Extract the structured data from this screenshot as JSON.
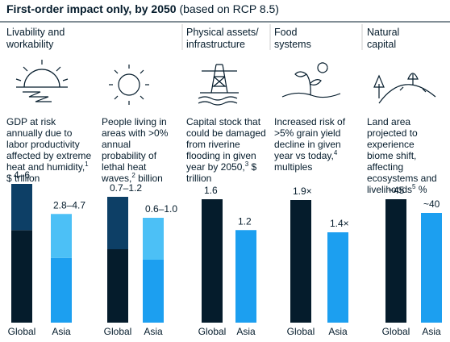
{
  "title": "First-order impact only, by 2050",
  "title_note": "(based on RCP 8.5)",
  "sections": [
    "Livability and workability",
    "Physical assets/ infrastructure",
    "Food systems",
    "Natural capital"
  ],
  "chart_data": [
    {
      "type": "bar",
      "description": "GDP at risk annually due to labor productivity affected by extreme heat and humidity,",
      "footnote": "1",
      "unit": "$ trillion",
      "categories": [
        "Global",
        "Asia"
      ],
      "values": [
        [
          4,
          6
        ],
        [
          2.8,
          4.7
        ]
      ],
      "value_labels": [
        "4–6",
        "2.8–4.7"
      ],
      "colors": [
        [
          "#051c2c",
          "#0d3f66"
        ],
        [
          "#1c9ff0",
          "#4cc0f6"
        ]
      ]
    },
    {
      "type": "bar",
      "description": "People living in areas with >0% annual probability of lethal heat waves,",
      "footnote": "2",
      "unit": "billion",
      "categories": [
        "Global",
        "Asia"
      ],
      "values": [
        [
          0.7,
          1.2
        ],
        [
          0.6,
          1.0
        ]
      ],
      "value_labels": [
        "0.7–1.2",
        "0.6–1.0"
      ],
      "colors": [
        [
          "#051c2c",
          "#0d3f66"
        ],
        [
          "#1c9ff0",
          "#4cc0f6"
        ]
      ]
    },
    {
      "type": "bar",
      "description": "Capital stock that could be damaged from riverine flooding in given year by 2050,",
      "footnote": "3",
      "unit": "$ trillion",
      "categories": [
        "Global",
        "Asia"
      ],
      "values": [
        1.6,
        1.2
      ],
      "colors": [
        "#051c2c",
        "#1c9ff0"
      ]
    },
    {
      "type": "bar",
      "description": "Increased risk of >5% grain yield decline in given year vs today,",
      "footnote": "4",
      "unit": "multiples",
      "categories": [
        "Global",
        "Asia"
      ],
      "values": [
        1.9,
        1.4
      ],
      "value_labels": [
        "1.9×",
        "1.4×"
      ],
      "colors": [
        "#051c2c",
        "#1c9ff0"
      ]
    },
    {
      "type": "bar",
      "description": "Land area projected to experience biome shift, affecting ecosystems and livelihoods",
      "footnote": "5",
      "unit": "%",
      "categories": [
        "Global",
        "Asia"
      ],
      "values": [
        45,
        40
      ],
      "value_labels": [
        "~45",
        "~40"
      ],
      "colors": [
        "#051c2c",
        "#1c9ff0"
      ]
    }
  ]
}
